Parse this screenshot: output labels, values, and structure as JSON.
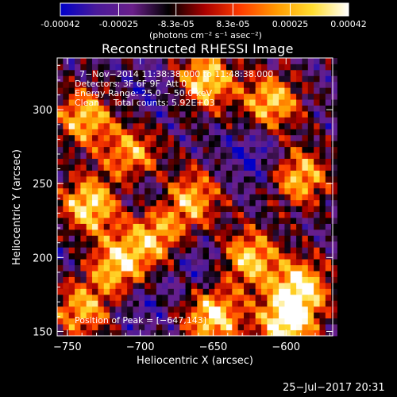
{
  "colorbar": {
    "tick_labels": [
      "-0.00042",
      "-0.00025",
      "-8.3e-05",
      "8.3e-05",
      "0.00025",
      "0.00042"
    ],
    "ticks": [
      -0.00042,
      -0.00025,
      -8.3e-05,
      8.3e-05,
      0.00025,
      0.00042
    ],
    "range": [
      -0.00042,
      0.00042
    ],
    "unit_label": "(photons cm⁻² s⁻¹ asec⁻²)",
    "stops": [
      "#0000c8",
      "#4a1a9a",
      "#6a1f8a",
      "#000000",
      "#a80000",
      "#ff3c00",
      "#ff9a00",
      "#ffdd30",
      "#ffffff"
    ]
  },
  "chart_data": {
    "type": "heatmap",
    "title": "Reconstructed RHESSI Image",
    "xlabel": "Heliocentric X (arcsec)",
    "ylabel": "Heliocentric Y (arcsec)",
    "xlim": [
      -757,
      -568
    ],
    "ylim": [
      147,
      335
    ],
    "x_ticks": [
      -750,
      -700,
      -650,
      -600
    ],
    "y_ticks": [
      150,
      200,
      250,
      300
    ],
    "x_tick_labels": [
      "−750",
      "−700",
      "−650",
      "−600"
    ],
    "y_tick_labels": [
      "150",
      "200",
      "250",
      "300"
    ],
    "grid": false,
    "annotations": [
      "7−Nov−2014 11:38:38.000 to 11:48:38.000",
      "Detectors: 3F 6F 9F  Att 0",
      "Energy Range: 25.0 − 50.0 keV",
      "Clean     Total counts: 5.92E+03"
    ],
    "peak_label": "Position of Peak = [−647,143]",
    "peak_position": [
      -647,
      143
    ],
    "bright_regions": [
      {
        "x": -655,
        "y": 320,
        "level": 0.85
      },
      {
        "x": -610,
        "y": 305,
        "level": 0.75
      },
      {
        "x": -738,
        "y": 295,
        "level": 0.7
      },
      {
        "x": -735,
        "y": 235,
        "level": 0.9
      },
      {
        "x": -705,
        "y": 270,
        "level": 0.6
      },
      {
        "x": -665,
        "y": 240,
        "level": 0.65
      },
      {
        "x": -590,
        "y": 255,
        "level": 0.7
      },
      {
        "x": -715,
        "y": 195,
        "level": 0.8
      },
      {
        "x": -690,
        "y": 215,
        "level": 0.6
      },
      {
        "x": -625,
        "y": 200,
        "level": 0.75
      },
      {
        "x": -590,
        "y": 180,
        "level": 0.85
      },
      {
        "x": -740,
        "y": 165,
        "level": 0.6
      },
      {
        "x": -650,
        "y": 160,
        "level": 0.9
      },
      {
        "x": -600,
        "y": 155,
        "level": 0.95
      }
    ],
    "dark_regions": [
      {
        "x": -690,
        "y": 310,
        "level": -0.7
      },
      {
        "x": -695,
        "y": 245,
        "level": -0.8
      },
      {
        "x": -620,
        "y": 270,
        "level": -0.9
      },
      {
        "x": -660,
        "y": 195,
        "level": -0.8
      },
      {
        "x": -700,
        "y": 170,
        "level": -0.75
      },
      {
        "x": -745,
        "y": 205,
        "level": -0.6
      }
    ]
  },
  "footer": {
    "timestamp": "25−Jul−2017 20:31"
  }
}
